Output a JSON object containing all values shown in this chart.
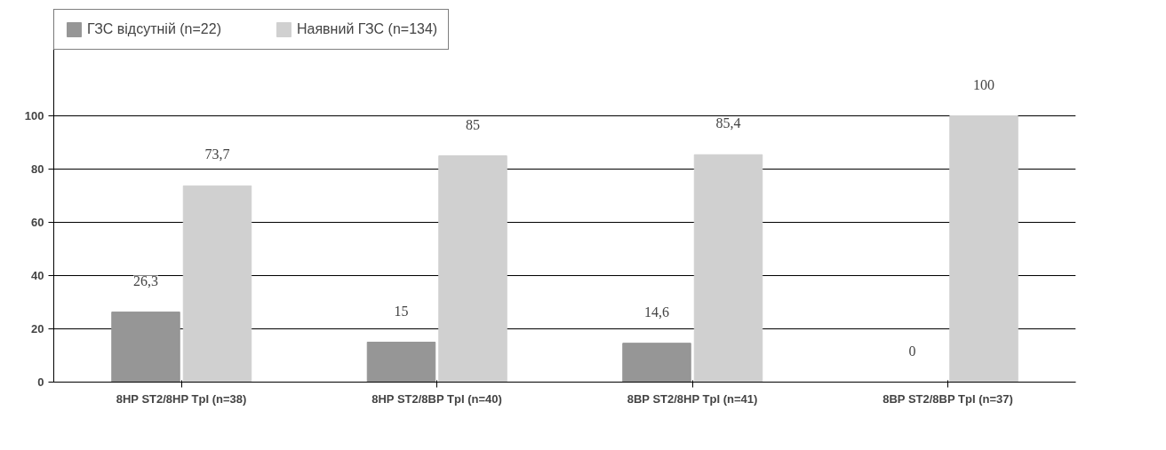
{
  "chart_data": {
    "type": "bar",
    "categories": [
      "8HP ST2/8HP TpI (n=38)",
      "8HP ST2/8BP TpI (n=40)",
      "8BP ST2/8HP TpI (n=41)",
      "8BP ST2/8BP TpI (n=37)"
    ],
    "series": [
      {
        "name": "ГЗС відсутній (n=22)",
        "color": "#969696",
        "values": [
          26.3,
          15,
          14.6,
          0
        ],
        "value_labels": [
          "26,3",
          "15",
          "14,6",
          "0"
        ]
      },
      {
        "name": "Наявний ГЗС (n=134)",
        "color": "#d0d0d0",
        "values": [
          73.7,
          85,
          85.4,
          100
        ],
        "value_labels": [
          "73,7",
          "85",
          "85,4",
          "100"
        ]
      }
    ],
    "ylim": [
      0,
      140
    ],
    "yticks": [
      0,
      20,
      40,
      60,
      80,
      100
    ],
    "grid": "y",
    "legend": "top"
  }
}
